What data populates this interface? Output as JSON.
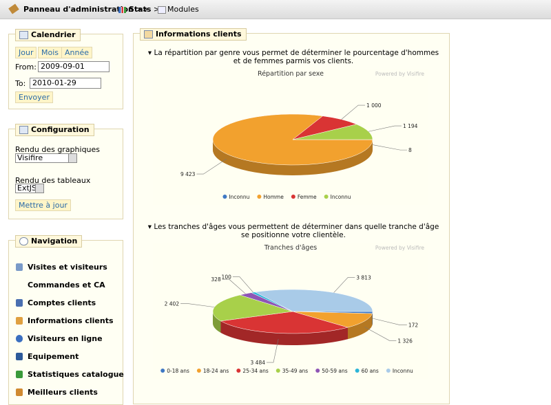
{
  "breadcrumb": {
    "items": [
      "Panneau d'administration",
      "Stats",
      "Modules"
    ],
    "separator": ">>"
  },
  "calendar": {
    "title": "Calendrier",
    "buttons": [
      "Jour",
      "Mois",
      "Année"
    ],
    "from_label": "From:",
    "from_value": "2009-09-01",
    "to_label": "To:",
    "to_value": "2010-01-29",
    "submit": "Envoyer"
  },
  "config": {
    "title": "Configuration",
    "graph_label": "Rendu des graphiques",
    "graph_value": "Visifire",
    "table_label": "Rendu des tableaux",
    "table_value": "ExtJS",
    "submit": "Mettre à jour"
  },
  "navigation": {
    "title": "Navigation",
    "items": [
      "Visites et visiteurs",
      "Commandes et CA",
      "Comptes clients",
      "Informations clients",
      "Visiteurs en ligne",
      "Equipement",
      "Statistiques catalogue",
      "Meilleurs clients"
    ]
  },
  "main": {
    "title": "Informations clients",
    "sections": [
      {
        "intro": "La répartition par genre vous permet de déterminer le pourcentage d'hommes et de femmes parmis vos clients.",
        "chart": {
          "type": "pie",
          "title": "Répartition par sexe",
          "watermark": "Powered by Visifire",
          "categories": [
            "Inconnu",
            "Homme",
            "Femme",
            "Inconnu"
          ],
          "values": [
            8,
            9423,
            1000,
            1194
          ],
          "value_labels": [
            "8",
            "9 423",
            "1 000",
            "1 194"
          ],
          "colors": [
            "#3f78c4",
            "#f2a12e",
            "#d93434",
            "#a8d04a"
          ]
        }
      },
      {
        "intro": "Les tranches d'âges vous permettent de déterminer dans quelle tranche d'âge se positionne votre clientèle.",
        "chart": {
          "type": "pie",
          "title": "Tranches d'âges",
          "watermark": "Powered by Visifire",
          "categories": [
            "0-18 ans",
            "18-24 ans",
            "25-34 ans",
            "35-49 ans",
            "50-59 ans",
            "60 ans",
            "Inconnu"
          ],
          "values": [
            172,
            1326,
            3484,
            2402,
            328,
            100,
            3813
          ],
          "value_labels": [
            "172",
            "1 326",
            "3 484",
            "2 402",
            "328",
            "100",
            "3 813"
          ],
          "colors": [
            "#3f78c4",
            "#f2a12e",
            "#d93434",
            "#a8d04a",
            "#8e55b5",
            "#2bb5d8",
            "#a9cbe8"
          ]
        }
      }
    ]
  }
}
